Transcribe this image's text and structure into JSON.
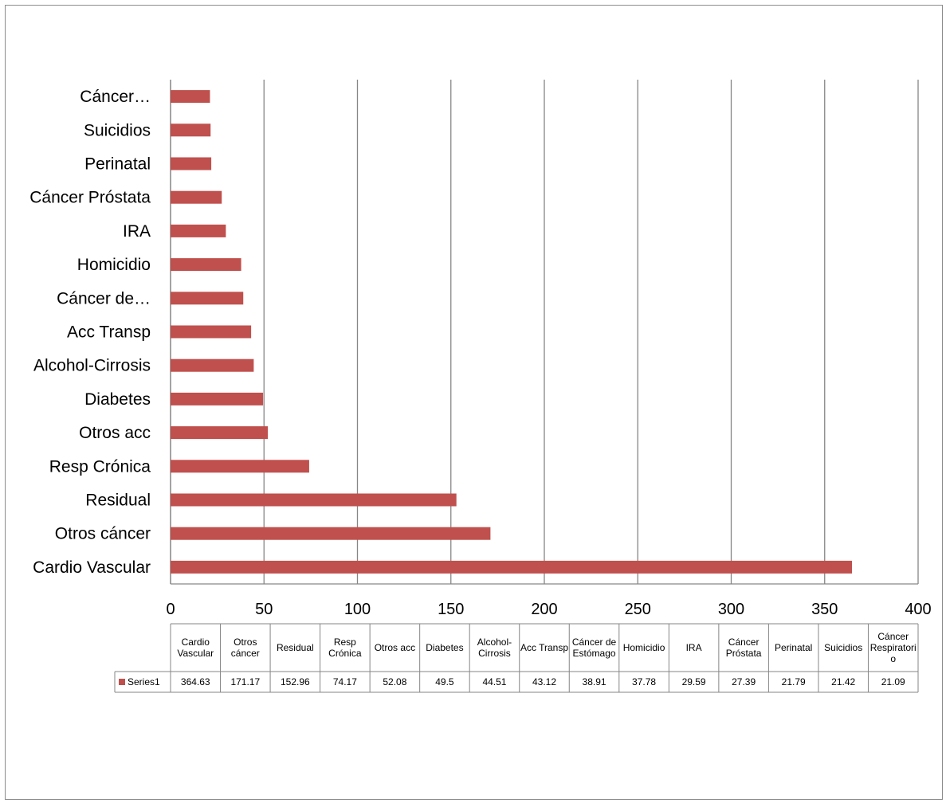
{
  "chart_data": {
    "type": "bar",
    "orientation": "horizontal",
    "categories": [
      "Cardio Vascular",
      "Otros cáncer",
      "Residual",
      "Resp Crónica",
      "Otros acc",
      "Diabetes",
      "Alcohol-Cirrosis",
      "Acc Transp",
      "Cáncer de Estómago",
      "Homicidio",
      "IRA",
      "Cáncer Próstata",
      "Perinatal",
      "Suicidios",
      "Cáncer Respiratorio"
    ],
    "axis_labels": [
      "Cardio Vascular",
      "Otros cáncer",
      "Residual",
      "Resp Crónica",
      "Otros acc",
      "Diabetes",
      "Alcohol-Cirrosis",
      "Acc Transp",
      "Cáncer de…",
      "Homicidio",
      "IRA",
      "Cáncer Próstata",
      "Perinatal",
      "Suicidios",
      "Cáncer…"
    ],
    "table_headers": [
      [
        "Cardio",
        "Vascular"
      ],
      [
        "Otros",
        "cáncer"
      ],
      [
        "Residual"
      ],
      [
        "Resp",
        "Crónica"
      ],
      [
        "Otros acc"
      ],
      [
        "Diabetes"
      ],
      [
        "Alcohol-",
        "Cirrosis"
      ],
      [
        "Acc Transp"
      ],
      [
        "Cáncer de",
        "Estómago"
      ],
      [
        "Homicidio"
      ],
      [
        "IRA"
      ],
      [
        "Cáncer",
        "Próstata"
      ],
      [
        "Perinatal"
      ],
      [
        "Suicidios"
      ],
      [
        "Cáncer",
        "Respiratori",
        "o"
      ]
    ],
    "series": [
      {
        "name": "Series1",
        "values": [
          364.63,
          171.17,
          152.96,
          74.17,
          52.08,
          49.5,
          44.51,
          43.12,
          38.91,
          37.78,
          29.59,
          27.39,
          21.79,
          21.42,
          21.09
        ],
        "value_labels": [
          "364.63",
          "171.17",
          "152.96",
          "74.17",
          "52.08",
          "49.5",
          "44.51",
          "43.12",
          "38.91",
          "37.78",
          "29.59",
          "27.39",
          "21.79",
          "21.42",
          "21.09"
        ]
      }
    ],
    "x_ticks": [
      "0",
      "50",
      "100",
      "150",
      "200",
      "250",
      "300",
      "350",
      "400"
    ],
    "xlim": [
      0,
      400
    ],
    "grid": "vertical",
    "legend": "data-table",
    "colors": {
      "bar": "#C0504D",
      "grid": "#868686",
      "axis": "#868686",
      "table_border": "#868686"
    }
  }
}
